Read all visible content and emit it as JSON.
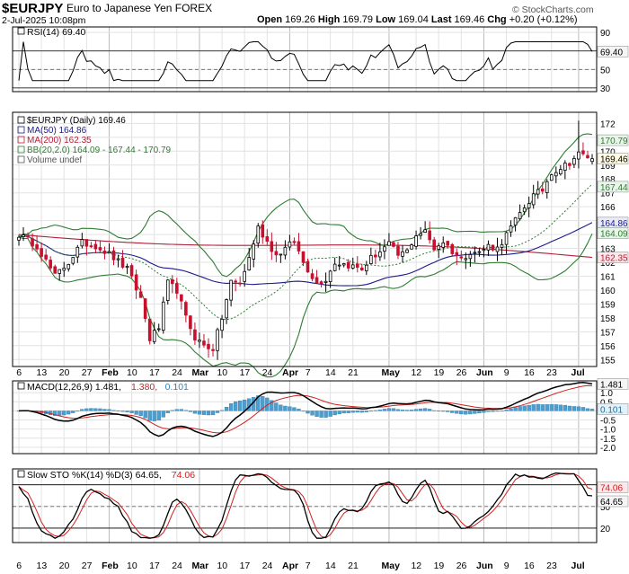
{
  "header": {
    "symbol": "$EURJPY",
    "name": "Euro to Japanese Yen",
    "exchange": "FOREX",
    "date": "2-Jul-2025 10:08pm",
    "open_label": "Open",
    "open": "169.26",
    "high_label": "High",
    "high": "169.79",
    "low_label": "Low",
    "low": "169.04",
    "last_label": "Last",
    "last": "169.46",
    "chg_label": "Chg",
    "chg": "+0.20 (+0.12%)",
    "watermark": "© StockCharts.com"
  },
  "chart_data": [
    {
      "type": "line",
      "panel": "rsi",
      "legend": "RSI(14) 69.40",
      "series": [
        {
          "name": "RSI(14)",
          "last": 69.4
        }
      ],
      "y_ticks": [
        30,
        50,
        70,
        90
      ],
      "levels": [
        30,
        70
      ],
      "current_label": "69.40",
      "ylim": [
        26,
        96
      ]
    },
    {
      "type": "candlestick",
      "panel": "price",
      "legend": [
        {
          "text": "$EURJPY (Daily) 169.46",
          "color": "#000000"
        },
        {
          "text": "MA(50) 164.86",
          "color": "#1a1a8c"
        },
        {
          "text": "MA(200) 162.35",
          "color": "#b0203a"
        },
        {
          "text": "BB(20,2.0) 164.09 - 167.44 - 170.79",
          "color": "#2e7d32"
        },
        {
          "text": "Volume undef",
          "color": "#555555"
        }
      ],
      "y_ticks": [
        155,
        156,
        157,
        158,
        159,
        160,
        161,
        162,
        163,
        164,
        165,
        166,
        167,
        168,
        169,
        170,
        171,
        172
      ],
      "ylim": [
        154.5,
        172.8
      ],
      "current_labels": [
        "170.79",
        "169.46",
        "167.44",
        "164.86",
        "164.09",
        "162.35"
      ],
      "ohlc_close_keypoints": [
        [
          0,
          164.0
        ],
        [
          4,
          163.2
        ],
        [
          8,
          161.0
        ],
        [
          11,
          162.0
        ],
        [
          14,
          163.4
        ],
        [
          17,
          163.2
        ],
        [
          20,
          162.6
        ],
        [
          24,
          161.5
        ],
        [
          27,
          159.4
        ],
        [
          29,
          156.5
        ],
        [
          31,
          157.3
        ],
        [
          33,
          160.5
        ],
        [
          35,
          160.0
        ],
        [
          37,
          158.0
        ],
        [
          39,
          156.6
        ],
        [
          41,
          156.0
        ],
        [
          43,
          155.8
        ],
        [
          45,
          158.0
        ],
        [
          47,
          160.6
        ],
        [
          49,
          160.5
        ],
        [
          51,
          162.3
        ],
        [
          53,
          164.5
        ],
        [
          55,
          163.5
        ],
        [
          57,
          162.5
        ],
        [
          59,
          163.0
        ],
        [
          61,
          163.5
        ],
        [
          63,
          162.0
        ],
        [
          66,
          160.5
        ],
        [
          68,
          160.8
        ],
        [
          70,
          162.0
        ],
        [
          73,
          161.8
        ],
        [
          76,
          161.5
        ],
        [
          78,
          162.3
        ],
        [
          80,
          162.8
        ],
        [
          82,
          163.3
        ],
        [
          84,
          162.5
        ],
        [
          86,
          162.8
        ],
        [
          88,
          164.0
        ],
        [
          90,
          164.2
        ],
        [
          92,
          163.0
        ],
        [
          94,
          163.5
        ],
        [
          96,
          162.8
        ],
        [
          98,
          162.2
        ],
        [
          100,
          162.8
        ],
        [
          102,
          162.7
        ],
        [
          104,
          163.2
        ],
        [
          106,
          163.0
        ],
        [
          108,
          164.0
        ],
        [
          110,
          165.0
        ],
        [
          112,
          166.0
        ],
        [
          114,
          166.8
        ],
        [
          116,
          167.2
        ],
        [
          118,
          168.5
        ],
        [
          120,
          168.8
        ],
        [
          122,
          169.2
        ],
        [
          124,
          169.8
        ],
        [
          126,
          169.6
        ],
        [
          127,
          169.46
        ]
      ],
      "ma50_last": 164.86,
      "ma200_last": 162.35,
      "bb_last": [
        164.09,
        167.44,
        170.79
      ]
    },
    {
      "type": "line",
      "panel": "macd",
      "legend": [
        {
          "text": "MACD(12,26,9) 1.481,",
          "color": "#000000"
        },
        {
          "text": "1.380,",
          "color": "#d02020"
        },
        {
          "text": "0.101",
          "color": "#2a86c0"
        }
      ],
      "series": [
        {
          "name": "MACD(12,26,9)",
          "last": 1.481
        },
        {
          "name": "Signal",
          "last": 1.38
        },
        {
          "name": "Histogram",
          "last": 0.101
        }
      ],
      "y_ticks": [
        -2.0,
        -1.5,
        -1.0,
        -0.5,
        0.0,
        0.5,
        1.0
      ],
      "tick_labels": [
        "-2.0",
        "-1.5",
        "-1.0",
        "-0.5",
        "0.0",
        "0.5",
        "1.0"
      ],
      "current_labels": [
        "1.481",
        "0.101"
      ],
      "ylim": [
        -2.35,
        1.65
      ]
    },
    {
      "type": "line",
      "panel": "stoch",
      "legend": [
        {
          "text": "Slow STO %K(14) %D(3) 64.65,",
          "color": "#000000"
        },
        {
          "text": "74.06",
          "color": "#d02020"
        }
      ],
      "series": [
        {
          "name": "%K(14)",
          "last": 64.65
        },
        {
          "name": "%D(3)",
          "last": 74.06
        }
      ],
      "y_ticks": [
        20,
        50,
        80
      ],
      "levels": [
        20,
        80
      ],
      "current_labels": [
        "74.06",
        "64.65"
      ],
      "ylim": [
        0,
        102
      ]
    }
  ],
  "x_axis": {
    "labels": [
      {
        "text": "6",
        "i": 0
      },
      {
        "text": "13",
        "i": 5
      },
      {
        "text": "20",
        "i": 10
      },
      {
        "text": "27",
        "i": 15
      },
      {
        "text": "Feb",
        "i": 20,
        "bold": true
      },
      {
        "text": "10",
        "i": 25
      },
      {
        "text": "17",
        "i": 30
      },
      {
        "text": "24",
        "i": 35
      },
      {
        "text": "Mar",
        "i": 40,
        "bold": true
      },
      {
        "text": "10",
        "i": 45
      },
      {
        "text": "17",
        "i": 50
      },
      {
        "text": "24",
        "i": 55
      },
      {
        "text": "Apr",
        "i": 60,
        "bold": true
      },
      {
        "text": "7",
        "i": 64
      },
      {
        "text": "14",
        "i": 69
      },
      {
        "text": "21",
        "i": 74
      },
      {
        "text": "May",
        "i": 82,
        "bold": true
      },
      {
        "text": "12",
        "i": 88
      },
      {
        "text": "19",
        "i": 93
      },
      {
        "text": "26",
        "i": 98
      },
      {
        "text": "Jun",
        "i": 103,
        "bold": true
      },
      {
        "text": "9",
        "i": 108
      },
      {
        "text": "16",
        "i": 113
      },
      {
        "text": "23",
        "i": 118
      },
      {
        "text": "Jul",
        "i": 124,
        "bold": true
      }
    ]
  }
}
